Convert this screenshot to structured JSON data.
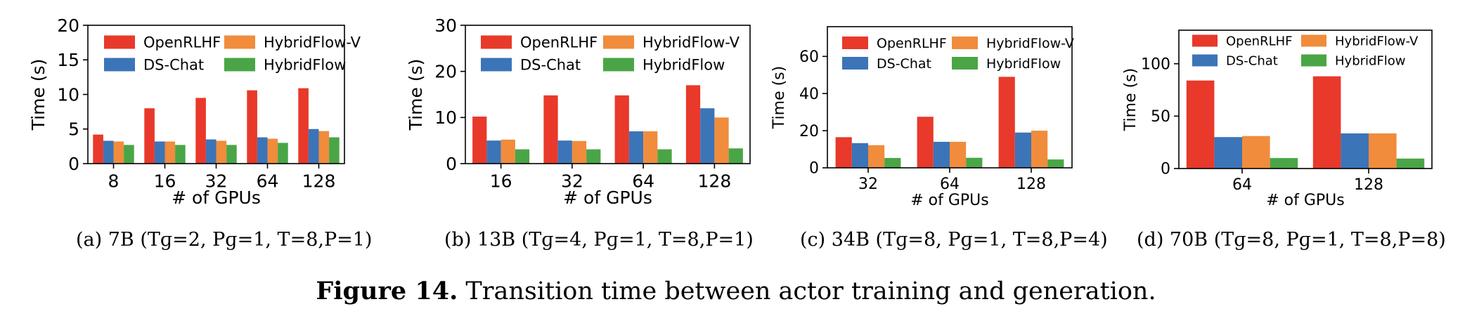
{
  "colors": {
    "OpenRLHF": "#e8392a",
    "DS-Chat": "#3c74b8",
    "HybridFlow-V": "#f08c3c",
    "HybridFlow": "#4aa546"
  },
  "legend": [
    "OpenRLHF",
    "HybridFlow-V",
    "DS-Chat",
    "HybridFlow"
  ],
  "subcaptions": [
    "(a)  7B (Tɡ=2, Pɡ=1, T=8,P=1)",
    "(b)  13B (Tɡ=4, Pɡ=1, T=8,P=1)",
    "(c)  34B (Tɡ=8, Pɡ=1, T=8,P=4)",
    "(d)  70B (Tɡ=8, Pɡ=1, T=8,P=8)"
  ],
  "figure_caption": {
    "label": "Figure 14.",
    "text": " Transition time between actor training and generation."
  },
  "chart_data": [
    {
      "type": "bar",
      "xlabel": "# of GPUs",
      "ylabel": "Time (s)",
      "ylim": [
        0,
        20
      ],
      "yticks": [
        0,
        5,
        10,
        15,
        20
      ],
      "categories": [
        "8",
        "16",
        "32",
        "64",
        "128"
      ],
      "series": [
        {
          "name": "OpenRLHF",
          "values": [
            4.2,
            8.0,
            9.5,
            10.6,
            10.9
          ]
        },
        {
          "name": "DS-Chat",
          "values": [
            3.3,
            3.2,
            3.5,
            3.8,
            5.0
          ]
        },
        {
          "name": "HybridFlow-V",
          "values": [
            3.2,
            3.2,
            3.3,
            3.6,
            4.7
          ]
        },
        {
          "name": "HybridFlow",
          "values": [
            2.7,
            2.7,
            2.7,
            3.0,
            3.8
          ]
        }
      ],
      "legend_position": "top-left"
    },
    {
      "type": "bar",
      "xlabel": "# of GPUs",
      "ylabel": "Time (s)",
      "ylim": [
        0,
        30
      ],
      "yticks": [
        0,
        10,
        20,
        30
      ],
      "categories": [
        "16",
        "32",
        "64",
        "128"
      ],
      "series": [
        {
          "name": "OpenRLHF",
          "values": [
            10.2,
            14.8,
            14.8,
            17.0
          ]
        },
        {
          "name": "DS-Chat",
          "values": [
            5.0,
            5.0,
            7.0,
            12.0
          ]
        },
        {
          "name": "HybridFlow-V",
          "values": [
            5.2,
            4.9,
            7.0,
            10.0
          ]
        },
        {
          "name": "HybridFlow",
          "values": [
            3.1,
            3.1,
            3.1,
            3.3
          ]
        }
      ],
      "legend_position": "top-left"
    },
    {
      "type": "bar",
      "xlabel": "# of GPUs",
      "ylabel": "Time (s)",
      "ylim": [
        0,
        76
      ],
      "yticks": [
        0,
        20,
        40,
        60
      ],
      "categories": [
        "32",
        "64",
        "128"
      ],
      "series": [
        {
          "name": "OpenRLHF",
          "values": [
            16.5,
            27.5,
            49.0
          ]
        },
        {
          "name": "DS-Chat",
          "values": [
            13.3,
            14.0,
            19.0
          ]
        },
        {
          "name": "HybridFlow-V",
          "values": [
            12.2,
            14.0,
            20.0
          ]
        },
        {
          "name": "HybridFlow",
          "values": [
            5.3,
            5.4,
            4.5
          ]
        }
      ],
      "legend_position": "top-left"
    },
    {
      "type": "bar",
      "xlabel": "# of GPUs",
      "ylabel": "Time (s)",
      "ylim": [
        0,
        132
      ],
      "yticks": [
        0,
        50,
        100
      ],
      "categories": [
        "64",
        "128"
      ],
      "series": [
        {
          "name": "OpenRLHF",
          "values": [
            84.0,
            88.0
          ]
        },
        {
          "name": "DS-Chat",
          "values": [
            30.0,
            33.5
          ]
        },
        {
          "name": "HybridFlow-V",
          "values": [
            31.0,
            33.5
          ]
        },
        {
          "name": "HybridFlow",
          "values": [
            10.0,
            9.5
          ]
        }
      ],
      "legend_position": "top-left"
    }
  ]
}
